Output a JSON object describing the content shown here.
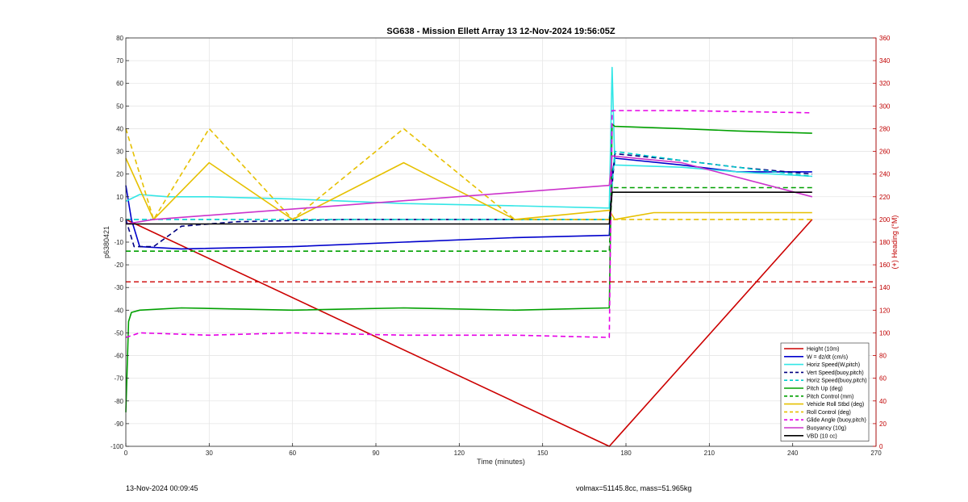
{
  "chart_data": {
    "type": "line",
    "title": "SG638 - Mission Ellett Array 13 12-Nov-2024 19:56:05Z",
    "xlabel": "Time (minutes)",
    "ylabel_left": "p6380421",
    "ylabel_right": "(+) Heading (°M)",
    "xlim": [
      0,
      270
    ],
    "ylim_left": [
      -100,
      80
    ],
    "ylim_right": [
      0,
      360
    ],
    "x_ticks": [
      0,
      30,
      60,
      90,
      120,
      150,
      180,
      210,
      240,
      270
    ],
    "y_ticks_left": [
      -100,
      -90,
      -80,
      -70,
      -60,
      -50,
      -40,
      -30,
      -20,
      -10,
      0,
      10,
      20,
      30,
      40,
      50,
      60,
      70,
      80
    ],
    "y_ticks_right": [
      0,
      20,
      40,
      60,
      80,
      100,
      120,
      140,
      160,
      180,
      200,
      220,
      240,
      260,
      280,
      300,
      320,
      340,
      360
    ],
    "grid": true,
    "legend_position": "bottom-right",
    "series": [
      {
        "name": "Height (10m)",
        "color": "#cc0000",
        "style": "solid",
        "x": [
          0,
          174,
          247
        ],
        "y": [
          0,
          -100,
          0
        ]
      },
      {
        "name": "W = dz/dt (cm/s)",
        "color": "#0000cc",
        "style": "solid",
        "x": [
          0,
          2,
          5,
          20,
          60,
          100,
          140,
          174,
          175,
          176,
          200,
          220,
          247
        ],
        "y": [
          15,
          0,
          -12,
          -13,
          -12,
          -10,
          -8,
          -7,
          20,
          27,
          24,
          21,
          21
        ]
      },
      {
        "name": "Horiz Speed(W,pitch)",
        "color": "#33e6e6",
        "style": "solid",
        "x": [
          0,
          5,
          15,
          30,
          60,
          100,
          140,
          174,
          175,
          176,
          200,
          220,
          247
        ],
        "y": [
          8,
          11,
          10,
          10,
          9,
          7,
          6,
          5,
          67,
          24,
          23,
          21,
          19
        ]
      },
      {
        "name": "Vert Speed(buoy,pitch)",
        "color": "#000080",
        "style": "dashed",
        "x": [
          0,
          3,
          10,
          20,
          40,
          80,
          120,
          174,
          176,
          200,
          220,
          247
        ],
        "y": [
          0,
          -12,
          -12,
          -3,
          -1,
          0,
          0,
          0,
          29,
          26,
          23,
          20
        ]
      },
      {
        "name": "Horiz Speed(buoy,pitch)",
        "color": "#00cccc",
        "style": "dashed",
        "x": [
          0,
          20,
          40,
          80,
          120,
          174,
          176,
          200,
          220,
          247
        ],
        "y": [
          0,
          0,
          0,
          0,
          0,
          0,
          30,
          26,
          23,
          19
        ]
      },
      {
        "name": "Pitch Up (deg)",
        "color": "#00a000",
        "style": "solid",
        "x": [
          0,
          1,
          2,
          5,
          20,
          60,
          100,
          140,
          174,
          175,
          176,
          200,
          220,
          247
        ],
        "y": [
          -85,
          -45,
          -41,
          -40,
          -39,
          -40,
          -39,
          -40,
          -39,
          42,
          41,
          40,
          39,
          38
        ]
      },
      {
        "name": "Pitch Control (mm)",
        "color": "#00a000",
        "style": "dashed",
        "x": [
          0,
          174,
          175,
          247
        ],
        "y": [
          -14,
          -14,
          14,
          14
        ]
      },
      {
        "name": "Vehicle Roll Stbd (deg)",
        "color": "#e6c000",
        "style": "solid",
        "x": [
          0,
          10,
          30,
          60,
          100,
          140,
          174,
          176,
          190,
          220,
          247
        ],
        "y": [
          27,
          0,
          25,
          0,
          25,
          0,
          4,
          0,
          3,
          3,
          3
        ]
      },
      {
        "name": "Roll Control (deg)",
        "color": "#e6c000",
        "style": "dashed",
        "x": [
          0,
          10,
          30,
          60,
          100,
          140,
          174,
          176,
          200,
          247
        ],
        "y": [
          40,
          0,
          40,
          0,
          40,
          0,
          0,
          0,
          0,
          0
        ]
      },
      {
        "name": "Glide Angle (buoy,pitch)",
        "color": "#e600e6",
        "style": "dashed",
        "x": [
          0,
          5,
          30,
          60,
          100,
          140,
          174,
          175,
          200,
          247
        ],
        "y": [
          -52,
          -50,
          -51,
          -50,
          -51,
          -51,
          -52,
          48,
          48,
          47
        ]
      },
      {
        "name": "Buoyancy (10g)",
        "color": "#cc33cc",
        "style": "solid",
        "x": [
          0,
          10,
          174,
          175,
          200,
          247
        ],
        "y": [
          -2,
          0,
          15,
          28,
          25,
          10
        ]
      },
      {
        "name": "VBD (10 cc)",
        "color": "#000000",
        "style": "solid",
        "x": [
          0,
          174,
          175,
          247
        ],
        "y": [
          -2,
          -2,
          12,
          12
        ]
      }
    ],
    "heading": {
      "color": "#cc0000",
      "reference_line": 145
    },
    "footer_left": "13-Nov-2024 00:09:45",
    "footer_right": "volmax=51145.8cc, mass=51.965kg"
  }
}
